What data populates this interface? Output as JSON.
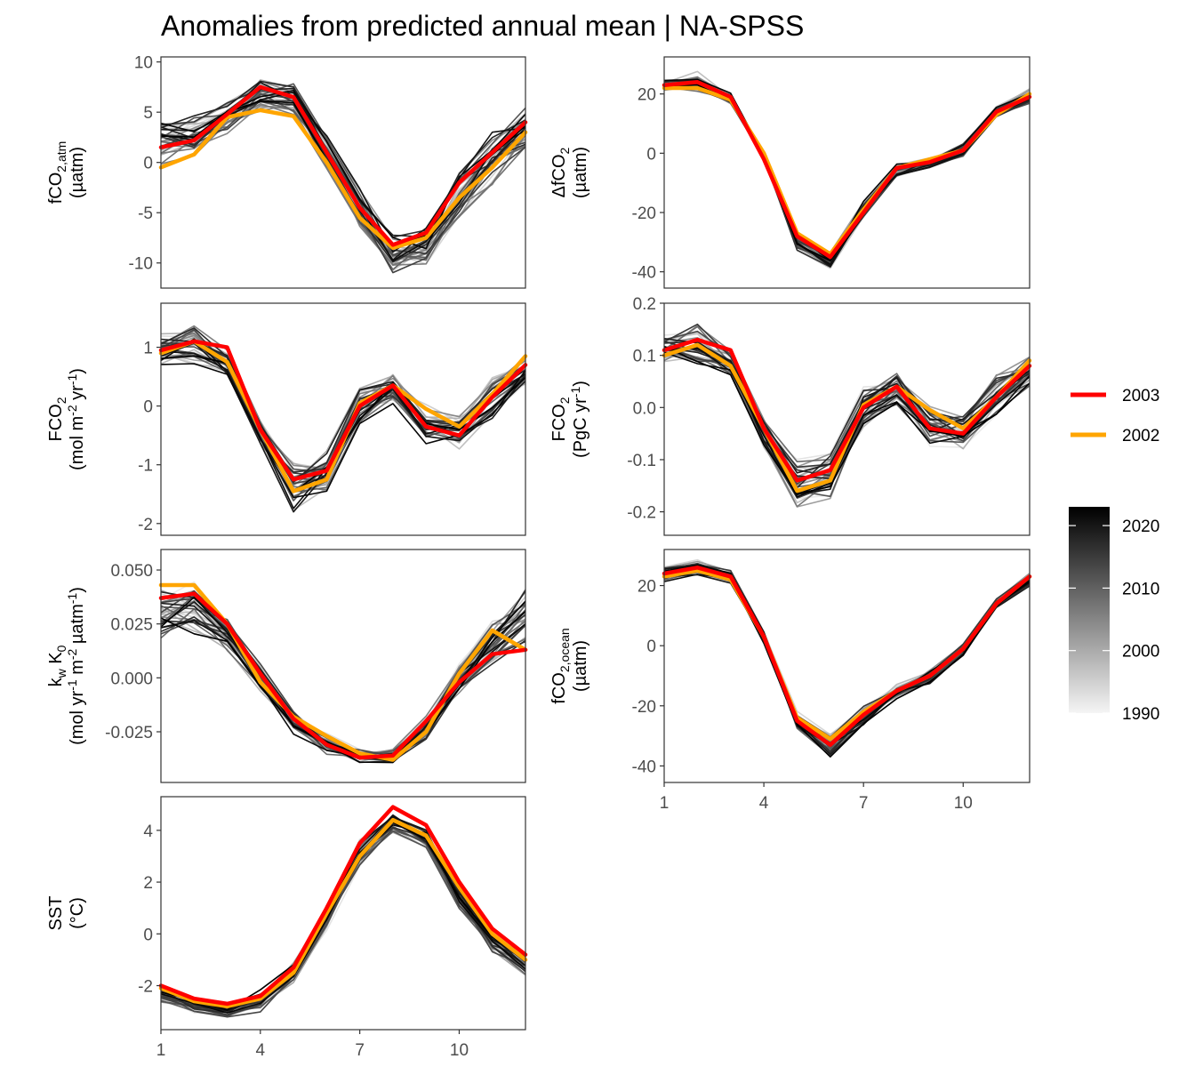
{
  "title": "Anomalies from predicted annual mean | NA-SPSS",
  "colors": {
    "year_2003": "#ff0000",
    "year_2002": "#ffa500",
    "gradient_dark": "#000000",
    "gradient_light": "#f2f2f2",
    "panel_border": "#333333",
    "tick_text": "#4d4d4d"
  },
  "legend": {
    "highlight": [
      {
        "label": "2003",
        "color": "#ff0000"
      },
      {
        "label": "2002",
        "color": "#ffa500"
      }
    ],
    "colorbar": {
      "labels": [
        "2020",
        "2010",
        "2000",
        "1990"
      ],
      "values": [
        2020,
        2010,
        2000,
        1990
      ],
      "range": [
        1990,
        2023
      ]
    }
  },
  "chart_data": [
    {
      "id": "fco2_atm",
      "type": "line",
      "ylabel": "fCO2,atm (µatm)",
      "ylabel_lines": [
        [
          {
            "t": "fCO"
          },
          {
            "t": "2,atm",
            "s": "sub"
          }
        ],
        [
          {
            "t": "(µatm)"
          }
        ]
      ],
      "x": [
        1,
        2,
        3,
        4,
        5,
        6,
        7,
        8,
        9,
        10,
        11,
        12
      ],
      "xticks": [
        1,
        4,
        7,
        10
      ],
      "yticks": [
        10,
        5,
        0,
        -5,
        -10
      ],
      "ytick_labels": [
        "10",
        "5",
        "0",
        "-5",
        "-10"
      ],
      "ylim": [
        -12.5,
        10.5
      ],
      "show_xaxis": false,
      "series": [
        {
          "name": "2003",
          "values": [
            1.5,
            2.2,
            4.8,
            7.5,
            6.5,
            1.0,
            -4.5,
            -8.2,
            -7.0,
            -2.0,
            1.0,
            4.0
          ]
        },
        {
          "name": "2002",
          "values": [
            -0.5,
            0.8,
            4.5,
            5.2,
            4.6,
            0.0,
            -5.5,
            -8.5,
            -7.5,
            -3.5,
            -0.5,
            3.0
          ]
        }
      ],
      "envelope": {
        "mean": [
          2.0,
          2.6,
          4.5,
          6.8,
          6.2,
          1.0,
          -4.5,
          -9.3,
          -8.3,
          -3.4,
          0.4,
          3.2
        ],
        "spread": [
          2.5,
          2.2,
          2.0,
          1.9,
          1.8,
          1.9,
          2.2,
          2.4,
          2.4,
          2.8,
          2.8,
          2.5
        ]
      }
    },
    {
      "id": "delta_fco2",
      "type": "line",
      "ylabel": "ΔfCO2 (µatm)",
      "ylabel_lines": [
        [
          {
            "t": "ΔfCO"
          },
          {
            "t": "2",
            "s": "sub"
          }
        ],
        [
          {
            "t": "(µatm)"
          }
        ]
      ],
      "x": [
        1,
        2,
        3,
        4,
        5,
        6,
        7,
        8,
        9,
        10,
        11,
        12
      ],
      "xticks": [
        1,
        4,
        7,
        10
      ],
      "yticks": [
        20,
        0,
        -20,
        -40
      ],
      "ytick_labels": [
        "20",
        "0",
        "-20",
        "-40"
      ],
      "ylim": [
        -45.5,
        32.5
      ],
      "show_xaxis": false,
      "series": [
        {
          "name": "2003",
          "values": [
            23,
            24,
            19,
            -2,
            -28,
            -35,
            -20,
            -5,
            -3,
            1,
            14,
            19
          ]
        },
        {
          "name": "2002",
          "values": [
            22,
            22,
            18,
            0,
            -27,
            -34,
            -19,
            -5,
            -2,
            1,
            13,
            20
          ]
        }
      ],
      "envelope": {
        "mean": [
          23,
          24,
          18.5,
          -1,
          -30,
          -36,
          -19,
          -6,
          -3,
          1,
          14,
          19
        ],
        "spread": [
          3.5,
          4,
          2.5,
          2.5,
          4,
          4,
          3.5,
          2.5,
          2.5,
          2.5,
          2,
          3.5
        ]
      }
    },
    {
      "id": "fco2_flux_area",
      "type": "line",
      "ylabel": "FCO2 (mol m-2 yr-1)",
      "ylabel_lines": [
        [
          {
            "t": "FCO"
          },
          {
            "t": "2",
            "s": "sub"
          }
        ],
        [
          {
            "t": "(mol m"
          },
          {
            "t": "-2",
            "s": "sup"
          },
          {
            "t": " yr"
          },
          {
            "t": "-1",
            "s": "sup"
          },
          {
            "t": ")"
          }
        ]
      ],
      "x": [
        1,
        2,
        3,
        4,
        5,
        6,
        7,
        8,
        9,
        10,
        11,
        12
      ],
      "xticks": [
        1,
        4,
        7,
        10
      ],
      "yticks": [
        1,
        0,
        -1,
        -2
      ],
      "ytick_labels": [
        "1",
        "0",
        "-1",
        "-2"
      ],
      "ylim": [
        -2.2,
        1.75
      ],
      "show_xaxis": false,
      "series": [
        {
          "name": "2003",
          "values": [
            0.95,
            1.1,
            1.0,
            -0.4,
            -1.25,
            -1.1,
            0.0,
            0.35,
            -0.35,
            -0.5,
            0.15,
            0.7
          ]
        },
        {
          "name": "2002",
          "values": [
            0.9,
            1.1,
            0.75,
            -0.4,
            -1.45,
            -1.25,
            0.05,
            0.35,
            -0.05,
            -0.35,
            0.2,
            0.85
          ]
        }
      ],
      "envelope": {
        "mean": [
          0.95,
          1.05,
          0.75,
          -0.45,
          -1.35,
          -1.15,
          0.0,
          0.3,
          -0.3,
          -0.4,
          0.15,
          0.6
        ],
        "spread": [
          0.3,
          0.45,
          0.25,
          0.25,
          0.55,
          0.45,
          0.4,
          0.3,
          0.4,
          0.35,
          0.4,
          0.3
        ]
      }
    },
    {
      "id": "fco2_flux_total",
      "type": "line",
      "ylabel": "FCO2 (PgC yr-1)",
      "ylabel_lines": [
        [
          {
            "t": "FCO"
          },
          {
            "t": "2",
            "s": "sub"
          }
        ],
        [
          {
            "t": "(PgC yr"
          },
          {
            "t": "-1",
            "s": "sup"
          },
          {
            "t": ")"
          }
        ]
      ],
      "x": [
        1,
        2,
        3,
        4,
        5,
        6,
        7,
        8,
        9,
        10,
        11,
        12
      ],
      "xticks": [
        1,
        4,
        7,
        10
      ],
      "yticks": [
        0.2,
        0.1,
        0.0,
        -0.1,
        -0.2
      ],
      "ytick_labels": [
        "0.2",
        "0.1",
        "0.0",
        "-0.1",
        "-0.2"
      ],
      "ylim": [
        -0.245,
        0.2
      ],
      "show_xaxis": false,
      "series": [
        {
          "name": "2003",
          "values": [
            0.11,
            0.13,
            0.11,
            -0.04,
            -0.14,
            -0.12,
            0.0,
            0.04,
            -0.04,
            -0.05,
            0.02,
            0.08
          ]
        },
        {
          "name": "2002",
          "values": [
            0.1,
            0.12,
            0.08,
            -0.04,
            -0.16,
            -0.14,
            0.005,
            0.04,
            -0.005,
            -0.04,
            0.02,
            0.09
          ]
        }
      ],
      "envelope": {
        "mean": [
          0.11,
          0.12,
          0.085,
          -0.05,
          -0.15,
          -0.13,
          0.0,
          0.035,
          -0.035,
          -0.045,
          0.02,
          0.07
        ],
        "spread": [
          0.035,
          0.05,
          0.03,
          0.03,
          0.06,
          0.05,
          0.045,
          0.035,
          0.045,
          0.04,
          0.045,
          0.035
        ]
      }
    },
    {
      "id": "kw_k0",
      "type": "line",
      "ylabel": "kw K0 (mol yr-1 m-2 µatm-1)",
      "ylabel_lines": [
        [
          {
            "t": "k"
          },
          {
            "t": "w",
            "s": "sub"
          },
          {
            "t": " K"
          },
          {
            "t": "0",
            "s": "sub"
          }
        ],
        [
          {
            "t": "(mol yr"
          },
          {
            "t": "-1",
            "s": "sup"
          },
          {
            "t": " m"
          },
          {
            "t": "-2",
            "s": "sup"
          },
          {
            "t": " µatm"
          },
          {
            "t": "-1",
            "s": "sup"
          },
          {
            "t": ")"
          }
        ]
      ],
      "x": [
        1,
        2,
        3,
        4,
        5,
        6,
        7,
        8,
        9,
        10,
        11,
        12
      ],
      "xticks": [
        1,
        4,
        7,
        10
      ],
      "yticks": [
        0.05,
        0.025,
        0.0,
        -0.025
      ],
      "ytick_labels": [
        "0.050",
        "0.025",
        "0.000",
        "-0.025"
      ],
      "ylim": [
        -0.0485,
        0.0595
      ],
      "show_xaxis": false,
      "series": [
        {
          "name": "2003",
          "values": [
            0.037,
            0.039,
            0.025,
            0.002,
            -0.019,
            -0.031,
            -0.037,
            -0.036,
            -0.02,
            -0.002,
            0.011,
            0.013
          ]
        },
        {
          "name": "2002",
          "values": [
            0.043,
            0.043,
            0.025,
            -0.002,
            -0.018,
            -0.027,
            -0.035,
            -0.038,
            -0.025,
            0.002,
            0.022,
            0.013
          ]
        }
      ],
      "envelope": {
        "mean": [
          0.03,
          0.033,
          0.021,
          0.0,
          -0.02,
          -0.03,
          -0.036,
          -0.036,
          -0.022,
          0.0,
          0.017,
          0.03
        ],
        "spread": [
          0.015,
          0.015,
          0.01,
          0.008,
          0.007,
          0.006,
          0.004,
          0.004,
          0.007,
          0.01,
          0.012,
          0.016
        ]
      }
    },
    {
      "id": "fco2_ocean",
      "type": "line",
      "ylabel": "fCO2,ocean (µatm)",
      "ylabel_lines": [
        [
          {
            "t": "fCO"
          },
          {
            "t": "2,ocean",
            "s": "sub"
          }
        ],
        [
          {
            "t": "(µatm)"
          }
        ]
      ],
      "x": [
        1,
        2,
        3,
        4,
        5,
        6,
        7,
        8,
        9,
        10,
        11,
        12
      ],
      "xticks": [
        1,
        4,
        7,
        10
      ],
      "xtick_labels": [
        "1",
        "4",
        "7",
        "10"
      ],
      "yticks": [
        20,
        0,
        -20,
        -40
      ],
      "ytick_labels": [
        "20",
        "0",
        "-20",
        "-40"
      ],
      "ylim": [
        -45.5,
        32
      ],
      "show_xaxis": true,
      "series": [
        {
          "name": "2003",
          "values": [
            24,
            26,
            23,
            3,
            -25,
            -33,
            -23,
            -15,
            -10,
            -1,
            14,
            23
          ]
        },
        {
          "name": "2002",
          "values": [
            23,
            25,
            22,
            3,
            -24,
            -31,
            -22,
            -15,
            -10,
            -1,
            14,
            23
          ]
        }
      ],
      "envelope": {
        "mean": [
          24,
          26,
          23,
          3,
          -25,
          -33,
          -23,
          -15,
          -10,
          -1,
          14,
          22
        ],
        "spread": [
          3,
          3,
          2.5,
          2.5,
          3.5,
          5,
          3.5,
          3,
          3,
          3,
          2,
          2.5
        ]
      }
    },
    {
      "id": "sst",
      "type": "line",
      "ylabel": "SST (°C)",
      "ylabel_lines": [
        [
          {
            "t": "SST"
          }
        ],
        [
          {
            "t": "(°C)"
          }
        ]
      ],
      "x": [
        1,
        2,
        3,
        4,
        5,
        6,
        7,
        8,
        9,
        10,
        11,
        12
      ],
      "xticks": [
        1,
        4,
        7,
        10
      ],
      "xtick_labels": [
        "1",
        "4",
        "7",
        "10"
      ],
      "yticks": [
        4,
        2,
        0,
        -2
      ],
      "ytick_labels": [
        "4",
        "2",
        "0",
        "-2"
      ],
      "ylim": [
        -3.7,
        5.3
      ],
      "show_xaxis": true,
      "series": [
        {
          "name": "2003",
          "values": [
            -2.0,
            -2.5,
            -2.7,
            -2.4,
            -1.3,
            1.0,
            3.5,
            4.9,
            4.2,
            2.0,
            0.2,
            -0.8
          ]
        },
        {
          "name": "2002",
          "values": [
            -2.1,
            -2.6,
            -2.8,
            -2.5,
            -1.5,
            0.8,
            3.0,
            4.4,
            3.8,
            1.8,
            0.0,
            -1.0
          ]
        }
      ],
      "envelope": {
        "mean": [
          -2.3,
          -2.8,
          -3.0,
          -2.6,
          -1.5,
          0.7,
          3.1,
          4.3,
          3.6,
          1.4,
          -0.3,
          -1.2
        ],
        "spread": [
          0.4,
          0.35,
          0.3,
          0.5,
          0.5,
          0.7,
          0.7,
          0.5,
          0.5,
          0.6,
          0.5,
          0.5
        ]
      }
    }
  ]
}
